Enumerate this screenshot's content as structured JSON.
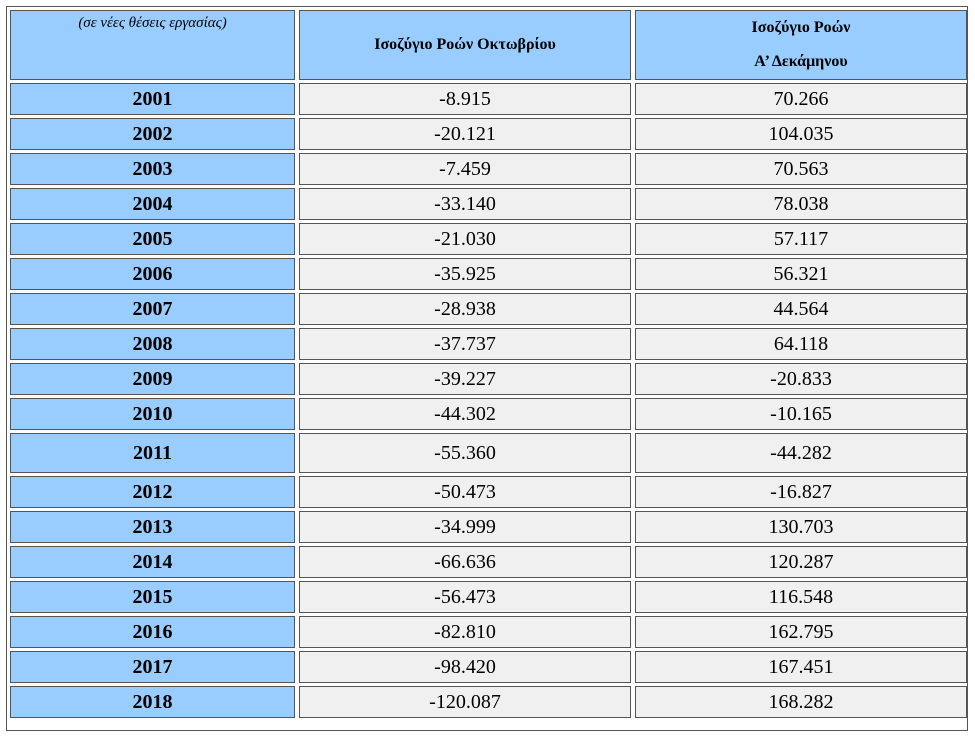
{
  "table": {
    "unit_label": "(σε νέες θέσεις εργασίας)",
    "col_october": "Ισοζύγιο Ροών Οκτωβρίου",
    "col_ten_month_line1": "Ισοζύγιο Ροών",
    "col_ten_month_line2": "Α’ Δεκάμηνου",
    "rows": [
      {
        "year": "2001",
        "october": "-8.915",
        "ten_month": "70.266"
      },
      {
        "year": "2002",
        "october": "-20.121",
        "ten_month": "104.035"
      },
      {
        "year": "2003",
        "october": "-7.459",
        "ten_month": "70.563"
      },
      {
        "year": "2004",
        "october": "-33.140",
        "ten_month": "78.038"
      },
      {
        "year": "2005",
        "october": "-21.030",
        "ten_month": "57.117"
      },
      {
        "year": "2006",
        "october": "-35.925",
        "ten_month": "56.321"
      },
      {
        "year": "2007",
        "october": "-28.938",
        "ten_month": "44.564"
      },
      {
        "year": "2008",
        "october": "-37.737",
        "ten_month": "64.118"
      },
      {
        "year": "2009",
        "october": "-39.227",
        "ten_month": "-20.833"
      },
      {
        "year": "2010",
        "october": "-44.302",
        "ten_month": "-10.165"
      },
      {
        "year": "2011",
        "october": "-55.360",
        "ten_month": "-44.282"
      },
      {
        "year": "2012",
        "october": "-50.473",
        "ten_month": "-16.827"
      },
      {
        "year": "2013",
        "october": "-34.999",
        "ten_month": "130.703"
      },
      {
        "year": "2014",
        "october": "-66.636",
        "ten_month": "120.287"
      },
      {
        "year": "2015",
        "october": "-56.473",
        "ten_month": "116.548"
      },
      {
        "year": "2016",
        "october": "-82.810",
        "ten_month": "162.795"
      },
      {
        "year": "2017",
        "october": "-98.420",
        "ten_month": "167.451"
      },
      {
        "year": "2018",
        "october": "-120.087",
        "ten_month": "168.282"
      }
    ]
  }
}
